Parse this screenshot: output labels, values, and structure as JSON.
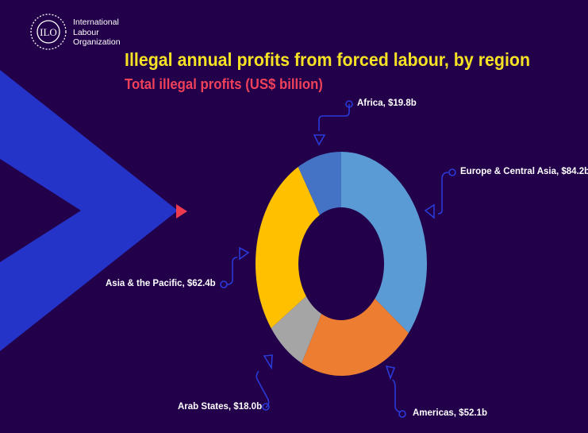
{
  "logo": {
    "abbr": "ILO",
    "lines": [
      "International",
      "Labour",
      "Organization"
    ]
  },
  "colors": {
    "background": "#22004a",
    "chevron": "#2433c8",
    "accent": "#ee3a4f",
    "connector": "#2a3ad8"
  },
  "chart_data": {
    "type": "pie",
    "variant": "donut",
    "title": "Illegal annual profits from forced labour, by region",
    "subtitle": "Total illegal profits (US$ billion)",
    "unit": "US$ billion",
    "slices": [
      {
        "name": "Europe & Central Asia",
        "value": 84.2,
        "label": "Europe & Central Asia, $84.2b",
        "color": "#5b9bd5"
      },
      {
        "name": "Americas",
        "value": 52.1,
        "label": "Americas, $52.1b",
        "color": "#ed7d31"
      },
      {
        "name": "Arab States",
        "value": 18.0,
        "label": "Arab States, $18.0b",
        "color": "#a5a5a5"
      },
      {
        "name": "Asia & the Pacific",
        "value": 62.4,
        "label": "Asia & the Pacific, $62.4b",
        "color": "#ffc000"
      },
      {
        "name": "Africa",
        "value": 19.8,
        "label": "Africa, $19.8b",
        "color": "#4472c4"
      }
    ]
  }
}
